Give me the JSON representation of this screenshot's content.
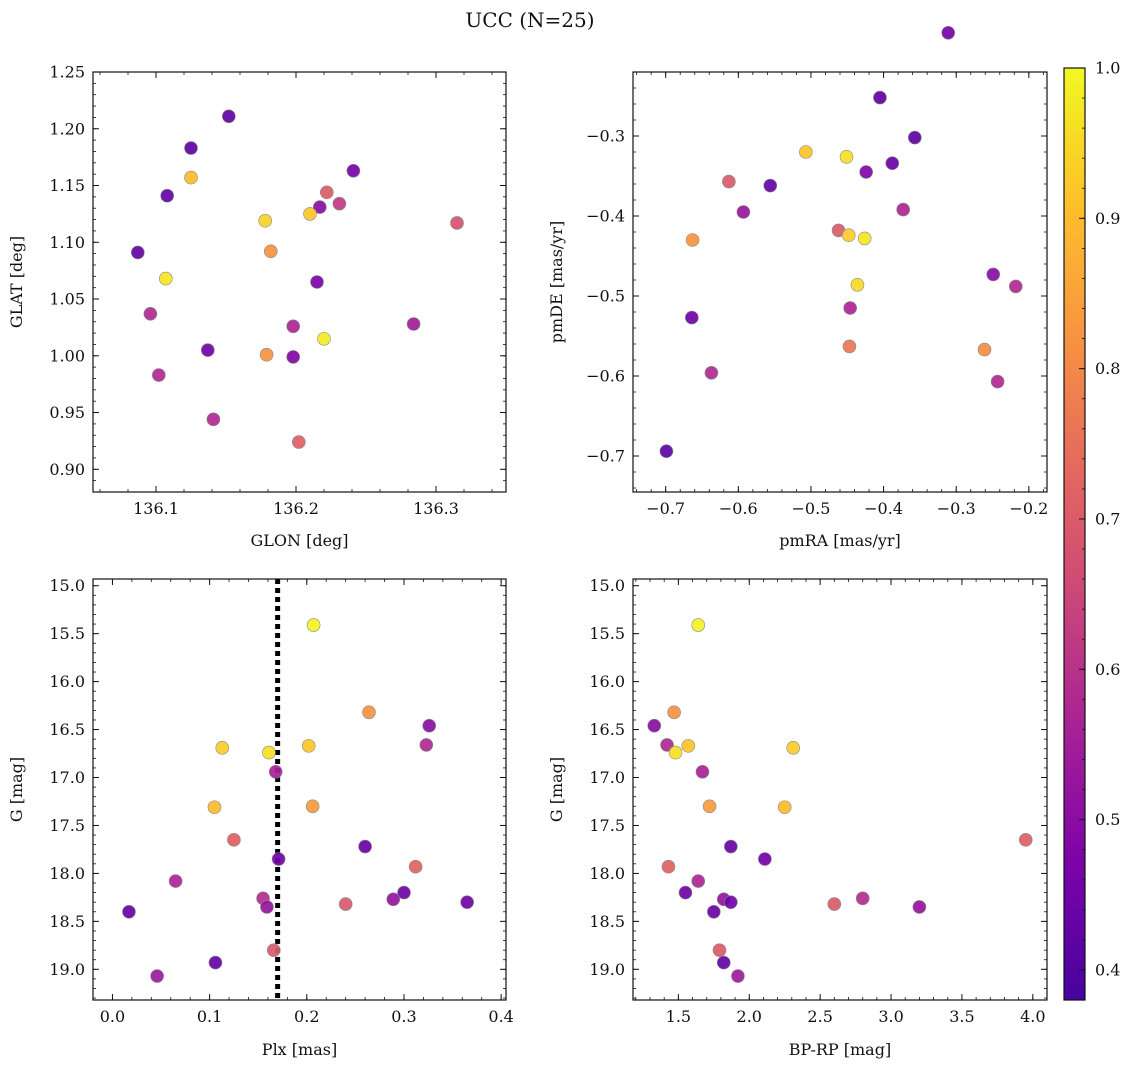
{
  "figure": {
    "title": "UCC (N=25)"
  },
  "colorbar": {
    "range": [
      0.38,
      1.0
    ],
    "ticks": [
      0.4,
      0.5,
      0.6,
      0.7,
      0.8,
      0.9,
      1.0
    ],
    "tick_labels": [
      "0.4",
      "0.5",
      "0.6",
      "0.7",
      "0.8",
      "0.9",
      "1.0"
    ],
    "colormap": "plasma"
  },
  "chart_data": [
    {
      "type": "scatter",
      "xlabel": "GLON [deg]",
      "ylabel": "GLAT [deg]",
      "xlim": [
        136.055,
        136.35
      ],
      "ylim": [
        0.88,
        1.25
      ],
      "xticks": [
        136.1,
        136.2,
        136.3
      ],
      "xtick_labels": [
        "136.1",
        "136.2",
        "136.3"
      ],
      "yticks": [
        0.9,
        0.95,
        1.0,
        1.05,
        1.1,
        1.15,
        1.2,
        1.25
      ],
      "ytick_labels": [
        "0.90",
        "0.95",
        "1.00",
        "1.05",
        "1.10",
        "1.15",
        "1.20",
        "1.25"
      ],
      "points": [
        {
          "x": 136.152,
          "y": 1.211,
          "c": 0.42
        },
        {
          "x": 136.125,
          "y": 1.183,
          "c": 0.42
        },
        {
          "x": 136.125,
          "y": 1.157,
          "c": 0.9
        },
        {
          "x": 136.108,
          "y": 1.141,
          "c": 0.43
        },
        {
          "x": 136.241,
          "y": 1.163,
          "c": 0.46
        },
        {
          "x": 136.222,
          "y": 1.144,
          "c": 0.7
        },
        {
          "x": 136.231,
          "y": 1.134,
          "c": 0.62
        },
        {
          "x": 136.217,
          "y": 1.131,
          "c": 0.5
        },
        {
          "x": 136.21,
          "y": 1.125,
          "c": 0.92
        },
        {
          "x": 136.178,
          "y": 1.119,
          "c": 0.94
        },
        {
          "x": 136.315,
          "y": 1.117,
          "c": 0.68
        },
        {
          "x": 136.182,
          "y": 1.092,
          "c": 0.82
        },
        {
          "x": 136.087,
          "y": 1.091,
          "c": 0.43
        },
        {
          "x": 136.107,
          "y": 1.068,
          "c": 0.97
        },
        {
          "x": 136.215,
          "y": 1.065,
          "c": 0.47
        },
        {
          "x": 136.096,
          "y": 1.037,
          "c": 0.58
        },
        {
          "x": 136.284,
          "y": 1.028,
          "c": 0.55
        },
        {
          "x": 136.198,
          "y": 1.026,
          "c": 0.57
        },
        {
          "x": 136.22,
          "y": 1.015,
          "c": 0.98
        },
        {
          "x": 136.137,
          "y": 1.005,
          "c": 0.45
        },
        {
          "x": 136.179,
          "y": 1.001,
          "c": 0.82
        },
        {
          "x": 136.198,
          "y": 0.999,
          "c": 0.48
        },
        {
          "x": 136.102,
          "y": 0.983,
          "c": 0.58
        },
        {
          "x": 136.141,
          "y": 0.944,
          "c": 0.58
        },
        {
          "x": 136.202,
          "y": 0.924,
          "c": 0.71
        }
      ]
    },
    {
      "type": "scatter",
      "xlabel": "pmRA [mas/yr]",
      "ylabel": "pmDE [mas/yr]",
      "xlim": [
        -0.745,
        -0.175
      ],
      "ylim": [
        -0.745,
        -0.22
      ],
      "xticks": [
        -0.7,
        -0.6,
        -0.5,
        -0.4,
        -0.3,
        -0.2
      ],
      "xtick_labels": [
        "−0.7",
        "−0.6",
        "−0.5",
        "−0.4",
        "−0.3",
        "−0.2"
      ],
      "yticks": [
        -0.7,
        -0.6,
        -0.5,
        -0.4,
        -0.3,
        -0.2
      ],
      "ytick_labels": [
        "−0.7",
        "−0.6",
        "−0.5",
        "−0.4",
        "−0.3",
        "−0.2"
      ],
      "points": [
        {
          "x": -0.311,
          "y": -0.171,
          "c": 0.46
        },
        {
          "x": -0.405,
          "y": -0.252,
          "c": 0.42
        },
        {
          "x": -0.357,
          "y": -0.302,
          "c": 0.42
        },
        {
          "x": -0.507,
          "y": -0.32,
          "c": 0.92
        },
        {
          "x": -0.451,
          "y": -0.326,
          "c": 0.96
        },
        {
          "x": -0.388,
          "y": -0.334,
          "c": 0.44
        },
        {
          "x": -0.424,
          "y": -0.345,
          "c": 0.48
        },
        {
          "x": -0.613,
          "y": -0.357,
          "c": 0.7
        },
        {
          "x": -0.556,
          "y": -0.362,
          "c": 0.43
        },
        {
          "x": -0.373,
          "y": -0.392,
          "c": 0.57
        },
        {
          "x": -0.593,
          "y": -0.395,
          "c": 0.53
        },
        {
          "x": -0.462,
          "y": -0.418,
          "c": 0.7
        },
        {
          "x": -0.448,
          "y": -0.424,
          "c": 0.93
        },
        {
          "x": -0.426,
          "y": -0.428,
          "c": 0.97
        },
        {
          "x": -0.663,
          "y": -0.43,
          "c": 0.82
        },
        {
          "x": -0.249,
          "y": -0.473,
          "c": 0.5
        },
        {
          "x": -0.436,
          "y": -0.486,
          "c": 0.95
        },
        {
          "x": -0.218,
          "y": -0.488,
          "c": 0.58
        },
        {
          "x": -0.446,
          "y": -0.515,
          "c": 0.57
        },
        {
          "x": -0.664,
          "y": -0.527,
          "c": 0.45
        },
        {
          "x": -0.447,
          "y": -0.563,
          "c": 0.76
        },
        {
          "x": -0.261,
          "y": -0.567,
          "c": 0.81
        },
        {
          "x": -0.637,
          "y": -0.596,
          "c": 0.58
        },
        {
          "x": -0.243,
          "y": -0.607,
          "c": 0.58
        },
        {
          "x": -0.699,
          "y": -0.694,
          "c": 0.42
        }
      ]
    },
    {
      "type": "scatter",
      "xlabel": "Plx [mas]",
      "ylabel": "G [mag]",
      "xlim": [
        -0.02,
        0.405
      ],
      "ylim": [
        19.32,
        14.93
      ],
      "xticks": [
        0.0,
        0.1,
        0.2,
        0.3,
        0.4
      ],
      "xtick_labels": [
        "0.0",
        "0.1",
        "0.2",
        "0.3",
        "0.4"
      ],
      "yticks": [
        15.0,
        15.5,
        16.0,
        16.5,
        17.0,
        17.5,
        18.0,
        18.5,
        19.0
      ],
      "ytick_labels": [
        "15.0",
        "15.5",
        "16.0",
        "16.5",
        "17.0",
        "17.5",
        "18.0",
        "18.5",
        "19.0"
      ],
      "vline": 0.17,
      "points": [
        {
          "x": 0.207,
          "y": 15.41,
          "c": 0.99
        },
        {
          "x": 0.264,
          "y": 16.32,
          "c": 0.82
        },
        {
          "x": 0.326,
          "y": 16.46,
          "c": 0.5
        },
        {
          "x": 0.323,
          "y": 16.66,
          "c": 0.58
        },
        {
          "x": 0.202,
          "y": 16.67,
          "c": 0.92
        },
        {
          "x": 0.113,
          "y": 16.69,
          "c": 0.93
        },
        {
          "x": 0.161,
          "y": 16.74,
          "c": 0.96
        },
        {
          "x": 0.168,
          "y": 16.94,
          "c": 0.56
        },
        {
          "x": 0.206,
          "y": 17.3,
          "c": 0.84
        },
        {
          "x": 0.105,
          "y": 17.31,
          "c": 0.9
        },
        {
          "x": 0.125,
          "y": 17.65,
          "c": 0.71
        },
        {
          "x": 0.26,
          "y": 17.72,
          "c": 0.44
        },
        {
          "x": 0.171,
          "y": 17.85,
          "c": 0.45
        },
        {
          "x": 0.312,
          "y": 17.93,
          "c": 0.72
        },
        {
          "x": 0.065,
          "y": 18.08,
          "c": 0.57
        },
        {
          "x": 0.3,
          "y": 18.2,
          "c": 0.45
        },
        {
          "x": 0.155,
          "y": 18.26,
          "c": 0.59
        },
        {
          "x": 0.289,
          "y": 18.27,
          "c": 0.52
        },
        {
          "x": 0.365,
          "y": 18.3,
          "c": 0.45
        },
        {
          "x": 0.24,
          "y": 18.32,
          "c": 0.7
        },
        {
          "x": 0.159,
          "y": 18.35,
          "c": 0.52
        },
        {
          "x": 0.017,
          "y": 18.4,
          "c": 0.44
        },
        {
          "x": 0.166,
          "y": 18.8,
          "c": 0.7
        },
        {
          "x": 0.106,
          "y": 18.93,
          "c": 0.43
        },
        {
          "x": 0.046,
          "y": 19.07,
          "c": 0.54
        }
      ]
    },
    {
      "type": "scatter",
      "xlabel": "BP-RP [mag]",
      "ylabel": "G [mag]",
      "xlim": [
        1.18,
        4.1
      ],
      "ylim": [
        19.32,
        14.93
      ],
      "xticks": [
        1.5,
        2.0,
        2.5,
        3.0,
        3.5,
        4.0
      ],
      "xtick_labels": [
        "1.5",
        "2.0",
        "2.5",
        "3.0",
        "3.5",
        "4.0"
      ],
      "yticks": [
        15.0,
        15.5,
        16.0,
        16.5,
        17.0,
        17.5,
        18.0,
        18.5,
        19.0
      ],
      "ytick_labels": [
        "15.0",
        "15.5",
        "16.0",
        "16.5",
        "17.0",
        "17.5",
        "18.0",
        "18.5",
        "19.0"
      ],
      "points": [
        {
          "x": 1.64,
          "y": 15.41,
          "c": 0.99
        },
        {
          "x": 1.47,
          "y": 16.32,
          "c": 0.82
        },
        {
          "x": 1.33,
          "y": 16.46,
          "c": 0.5
        },
        {
          "x": 1.42,
          "y": 16.66,
          "c": 0.58
        },
        {
          "x": 1.57,
          "y": 16.67,
          "c": 0.92
        },
        {
          "x": 2.31,
          "y": 16.69,
          "c": 0.93
        },
        {
          "x": 1.48,
          "y": 16.74,
          "c": 0.96
        },
        {
          "x": 1.67,
          "y": 16.94,
          "c": 0.56
        },
        {
          "x": 1.72,
          "y": 17.3,
          "c": 0.84
        },
        {
          "x": 2.25,
          "y": 17.31,
          "c": 0.9
        },
        {
          "x": 3.95,
          "y": 17.65,
          "c": 0.71
        },
        {
          "x": 1.87,
          "y": 17.72,
          "c": 0.44
        },
        {
          "x": 2.11,
          "y": 17.85,
          "c": 0.45
        },
        {
          "x": 1.43,
          "y": 17.93,
          "c": 0.72
        },
        {
          "x": 1.64,
          "y": 18.08,
          "c": 0.57
        },
        {
          "x": 1.55,
          "y": 18.2,
          "c": 0.45
        },
        {
          "x": 2.8,
          "y": 18.26,
          "c": 0.59
        },
        {
          "x": 1.82,
          "y": 18.27,
          "c": 0.52
        },
        {
          "x": 1.87,
          "y": 18.3,
          "c": 0.45
        },
        {
          "x": 2.6,
          "y": 18.32,
          "c": 0.7
        },
        {
          "x": 3.2,
          "y": 18.35,
          "c": 0.52
        },
        {
          "x": 1.75,
          "y": 18.4,
          "c": 0.44
        },
        {
          "x": 1.79,
          "y": 18.8,
          "c": 0.7
        },
        {
          "x": 1.82,
          "y": 18.93,
          "c": 0.43
        },
        {
          "x": 1.92,
          "y": 19.07,
          "c": 0.54
        }
      ]
    }
  ]
}
